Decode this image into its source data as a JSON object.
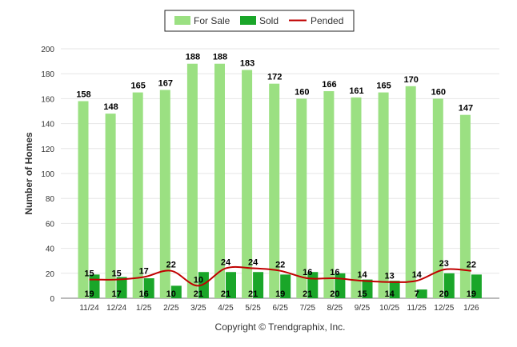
{
  "chart_data": {
    "type": "bar",
    "categories": [
      "11/24",
      "12/24",
      "1/25",
      "2/25",
      "3/25",
      "4/25",
      "5/25",
      "6/25",
      "7/25",
      "8/25",
      "9/25",
      "10/25",
      "11/25",
      "12/25",
      "1/26"
    ],
    "series": [
      {
        "name": "For Sale",
        "type": "bar",
        "color": "#9be082",
        "values": [
          158,
          148,
          165,
          167,
          188,
          188,
          183,
          172,
          160,
          166,
          161,
          165,
          170,
          160,
          147
        ]
      },
      {
        "name": "Sold",
        "type": "bar",
        "color": "#1aa629",
        "values": [
          19,
          17,
          16,
          10,
          21,
          21,
          21,
          19,
          21,
          20,
          15,
          14,
          7,
          20,
          19
        ]
      },
      {
        "name": "Pended",
        "type": "line",
        "color": "#c00000",
        "values": [
          15,
          15,
          17,
          22,
          10,
          24,
          24,
          22,
          16,
          16,
          14,
          13,
          14,
          23,
          22
        ]
      }
    ],
    "ylabel": "Number of Homes",
    "ylim": [
      0,
      200
    ],
    "yticks": [
      0,
      20,
      40,
      60,
      80,
      100,
      120,
      140,
      160,
      180,
      200
    ],
    "grid": true,
    "legend_placement": "top-center",
    "credit": "Copyright © Trendgraphix, Inc."
  }
}
